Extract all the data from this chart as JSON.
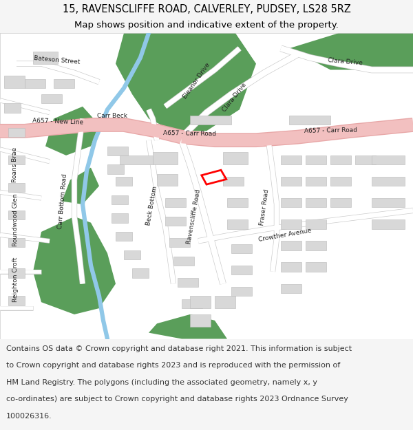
{
  "title_line1": "15, RAVENSCLIFFE ROAD, CALVERLEY, PUDSEY, LS28 5RZ",
  "title_line2": "Map shows position and indicative extent of the property.",
  "footer_lines": [
    "Contains OS data © Crown copyright and database right 2021. This information is subject",
    "to Crown copyright and database rights 2023 and is reproduced with the permission of",
    "HM Land Registry. The polygons (including the associated geometry, namely x, y",
    "co-ordinates) are subject to Crown copyright and database rights 2023 Ordnance Survey",
    "100026316."
  ],
  "bg_color": "#f5f5f5",
  "map_bg": "#ffffff",
  "green_color": "#5a9e5a",
  "road_pink_fill": "#f2c0c0",
  "road_pink_edge": "#e8a8a8",
  "water_color": "#90c8e8",
  "building_fill": "#d8d8d8",
  "building_edge": "#b8b8b8",
  "road_fill": "#ffffff",
  "road_edge": "#cccccc",
  "plot_color": "#ff0000",
  "text_color": "#333333",
  "title_fontsize": 10.5,
  "sub_fontsize": 9.5,
  "footer_fontsize": 8.0,
  "label_fontsize": 6.5,
  "label_color": "#222222"
}
